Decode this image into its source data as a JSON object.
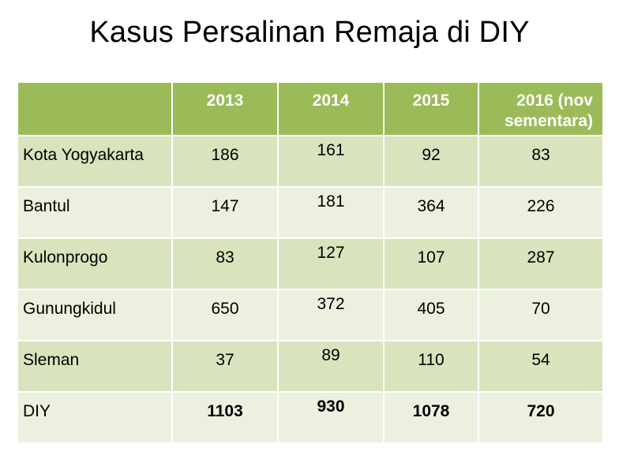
{
  "title": "Kasus Persalinan Remaja di DIY",
  "table": {
    "columns": [
      "",
      "2013",
      "2014",
      "2015",
      "2016  (nov sementara)"
    ],
    "rows": [
      {
        "region": "Kota Yogyakarta",
        "v2013": "186",
        "v2014": "161",
        "v2015": "92",
        "v2016": "83"
      },
      {
        "region": "Bantul",
        "v2013": "147",
        "v2014": "181",
        "v2015": "364",
        "v2016": "226"
      },
      {
        "region": "Kulonprogo",
        "v2013": "83",
        "v2014": "127",
        "v2015": "107",
        "v2016": "287"
      },
      {
        "region": "Gunungkidul",
        "v2013": "650",
        "v2014": "372",
        "v2015": "405",
        "v2016": "70"
      },
      {
        "region": "Sleman",
        "v2013": "37",
        "v2014": "89",
        "v2015": "110",
        "v2016": "54"
      },
      {
        "region": "DIY",
        "v2013": "1103",
        "v2014": "930",
        "v2015": "1078",
        "v2016": "720"
      }
    ]
  },
  "colors": {
    "header": "#9bbb59",
    "row_dark": "#d7e4bd",
    "row_light": "#ebf1de"
  }
}
